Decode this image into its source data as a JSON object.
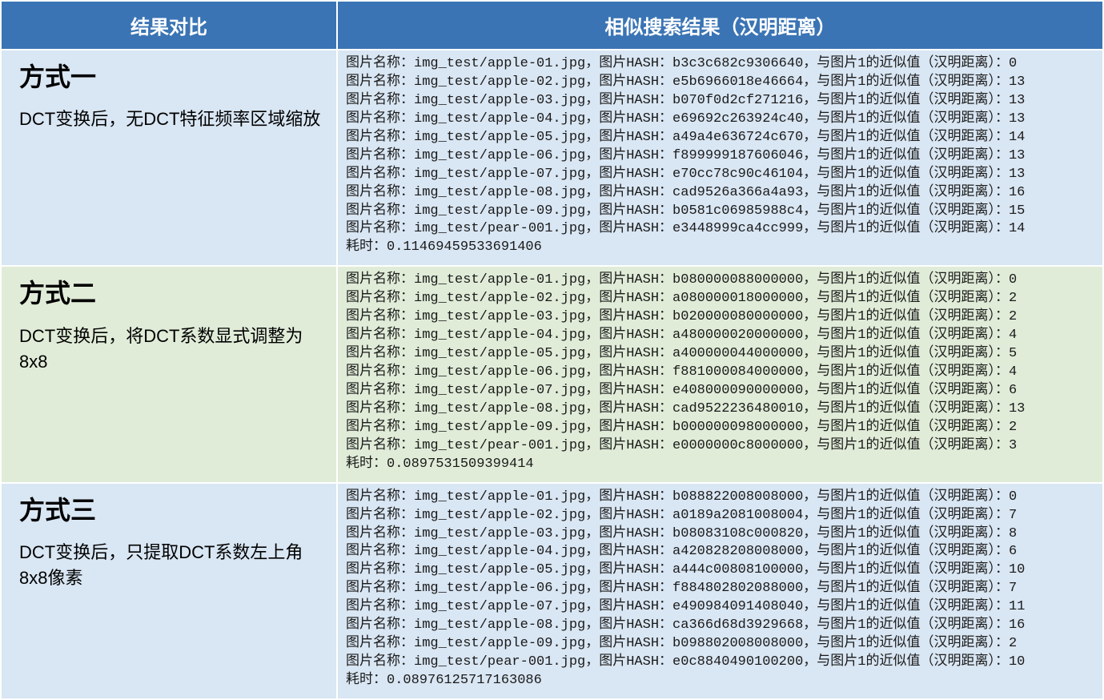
{
  "header": {
    "col1": "结果对比",
    "col2": "相似搜索结果（汉明距离）"
  },
  "colors": {
    "header_bg": "#3a74b4",
    "header_fg": "#ffffff",
    "row_blue": "#d9e6f3",
    "row_green": "#e0ecd8",
    "border": "#ffffff"
  },
  "labels": {
    "img_name_prefix": "图片名称：",
    "hash_prefix": "图片HASH：",
    "distance_prefix": "与图片1的近似值（汉明距离）：",
    "time_prefix": "耗时："
  },
  "methods": [
    {
      "title": "方式一",
      "desc": "DCT变换后，无DCT特征频率区域缩放",
      "time": "0.11469459533691406",
      "rows": [
        {
          "file": "img_test/apple-01.jpg",
          "hash": "b3c3c682c9306640",
          "dist": 0
        },
        {
          "file": "img_test/apple-02.jpg",
          "hash": "e5b6966018e46664",
          "dist": 13
        },
        {
          "file": "img_test/apple-03.jpg",
          "hash": "b070f0d2cf271216",
          "dist": 13
        },
        {
          "file": "img_test/apple-04.jpg",
          "hash": "e69692c263924c40",
          "dist": 13
        },
        {
          "file": "img_test/apple-05.jpg",
          "hash": "a49a4e636724c670",
          "dist": 14
        },
        {
          "file": "img_test/apple-06.jpg",
          "hash": "f899999187606046",
          "dist": 13
        },
        {
          "file": "img_test/apple-07.jpg",
          "hash": "e70cc78c90c46104",
          "dist": 13
        },
        {
          "file": "img_test/apple-08.jpg",
          "hash": "cad9526a366a4a93",
          "dist": 16
        },
        {
          "file": "img_test/apple-09.jpg",
          "hash": "b0581c06985988c4",
          "dist": 15
        },
        {
          "file": "img_test/pear-001.jpg",
          "hash": "e3448999ca4cc999",
          "dist": 14
        }
      ]
    },
    {
      "title": "方式二",
      "desc": "DCT变换后，将DCT系数显式调整为8x8",
      "time": "0.0897531509399414",
      "rows": [
        {
          "file": "img_test/apple-01.jpg",
          "hash": "b080000088000000",
          "dist": 0
        },
        {
          "file": "img_test/apple-02.jpg",
          "hash": "a080000018000000",
          "dist": 2
        },
        {
          "file": "img_test/apple-03.jpg",
          "hash": "b020000080000000",
          "dist": 2
        },
        {
          "file": "img_test/apple-04.jpg",
          "hash": "a480000020000000",
          "dist": 4
        },
        {
          "file": "img_test/apple-05.jpg",
          "hash": "a400000044000000",
          "dist": 5
        },
        {
          "file": "img_test/apple-06.jpg",
          "hash": "f881000084000000",
          "dist": 4
        },
        {
          "file": "img_test/apple-07.jpg",
          "hash": "e408000090000000",
          "dist": 6
        },
        {
          "file": "img_test/apple-08.jpg",
          "hash": "cad9522236480010",
          "dist": 13
        },
        {
          "file": "img_test/apple-09.jpg",
          "hash": "b000000098000000",
          "dist": 2
        },
        {
          "file": "img_test/pear-001.jpg",
          "hash": "e0000000c8000000",
          "dist": 3
        }
      ]
    },
    {
      "title": "方式三",
      "desc": "DCT变换后，只提取DCT系数左上角8x8像素",
      "time": "0.08976125717163086",
      "rows": [
        {
          "file": "img_test/apple-01.jpg",
          "hash": "b088822008008000",
          "dist": 0
        },
        {
          "file": "img_test/apple-02.jpg",
          "hash": "a0189a2081008004",
          "dist": 7
        },
        {
          "file": "img_test/apple-03.jpg",
          "hash": "b08083108c000820",
          "dist": 8
        },
        {
          "file": "img_test/apple-04.jpg",
          "hash": "a420828208008000",
          "dist": 6
        },
        {
          "file": "img_test/apple-05.jpg",
          "hash": "a444c00808100000",
          "dist": 10
        },
        {
          "file": "img_test/apple-06.jpg",
          "hash": "f884802802088000",
          "dist": 7
        },
        {
          "file": "img_test/apple-07.jpg",
          "hash": "e490984091408040",
          "dist": 11
        },
        {
          "file": "img_test/apple-08.jpg",
          "hash": "ca366d68d3929668",
          "dist": 16
        },
        {
          "file": "img_test/apple-09.jpg",
          "hash": "b098802008008000",
          "dist": 2
        },
        {
          "file": "img_test/pear-001.jpg",
          "hash": "e0c8840490100200",
          "dist": 10
        }
      ]
    }
  ]
}
